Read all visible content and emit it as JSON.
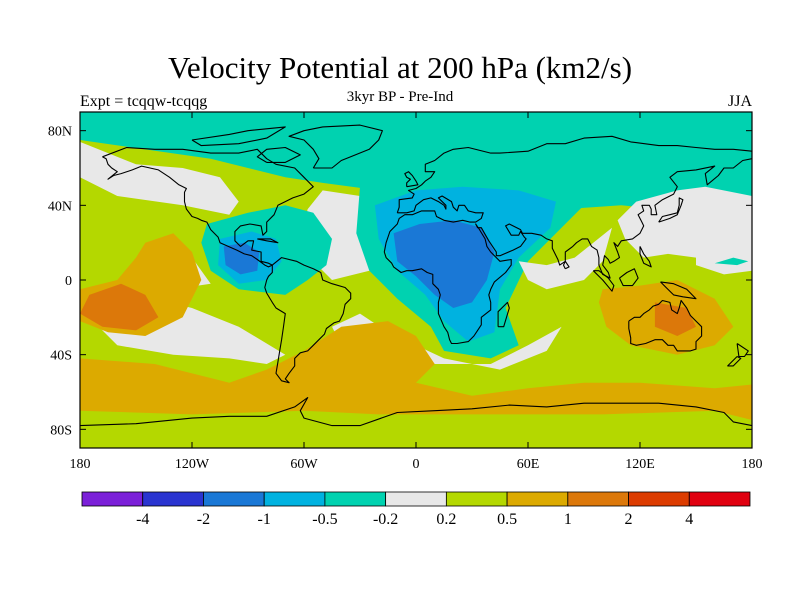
{
  "title": "Velocity Potential at 200 hPa (km2/s)",
  "subtitle": "3kyr BP - Pre-Ind",
  "expt_label": "Expt = tcqqw-tcqqg",
  "season": "JJA",
  "x_ticks": [
    "180",
    "120W",
    "60W",
    "0",
    "60E",
    "120E",
    "180"
  ],
  "y_ticks": [
    "80N",
    "40N",
    "0",
    "40S",
    "80S"
  ],
  "colorbar": {
    "colors": [
      "#7b20d8",
      "#2a34d0",
      "#1a78d6",
      "#00b2e0",
      "#00d2b0",
      "#e8e8e8",
      "#b4d800",
      "#dcaa00",
      "#dc780a",
      "#dc3c00",
      "#e00010"
    ],
    "labels": [
      "-4",
      "-2",
      "-1",
      "-0.5",
      "-0.2",
      "0.2",
      "0.5",
      "1",
      "2",
      "4"
    ]
  },
  "map_colors": {
    "neg_light": "#00d2b0",
    "neg_mid": "#00b2e0",
    "neg_strong": "#1a78d6",
    "near_zero": "#e8e8e8",
    "pos_light": "#b4d800",
    "pos_mid": "#dcaa00",
    "pos_strong": "#dc780a"
  }
}
